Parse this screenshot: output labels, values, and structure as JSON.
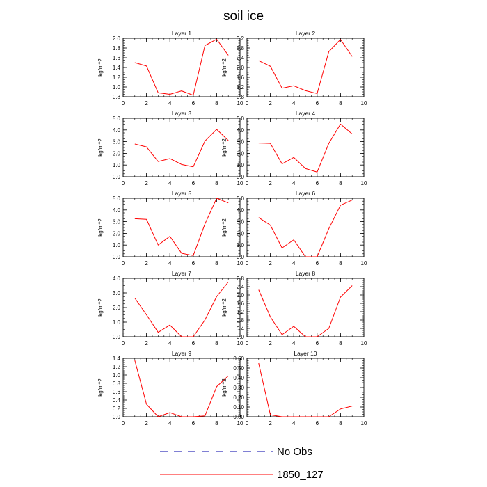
{
  "title": "soil ice",
  "legend": [
    {
      "label": "No Obs",
      "color": "#0000aa",
      "style": "dashed"
    },
    {
      "label": "1850_127",
      "color": "#ff0000",
      "style": "solid"
    }
  ],
  "chart_data": [
    {
      "type": "line",
      "title": "Layer 1",
      "ylabel": "kg/m^2",
      "xlim": [
        0,
        10
      ],
      "ylim": [
        0.8,
        2.0
      ],
      "x_ticks": [
        "0",
        "2",
        "4",
        "6",
        "8",
        "10"
      ],
      "y_ticks": [
        "0.8",
        "1.0",
        "1.2",
        "1.4",
        "1.6",
        "1.8",
        "2.0"
      ],
      "series": [
        {
          "name": "1850_127",
          "color": "#ff0000",
          "x": [
            1,
            2,
            3,
            4,
            5,
            6,
            7,
            8,
            9
          ],
          "values": [
            1.5,
            1.43,
            0.88,
            0.85,
            0.92,
            0.83,
            1.85,
            1.98,
            1.65
          ]
        }
      ]
    },
    {
      "type": "line",
      "title": "Layer 2",
      "ylabel": "kg/m^2",
      "xlim": [
        0,
        10
      ],
      "ylim": [
        0.8,
        3.2
      ],
      "x_ticks": [
        "0",
        "2",
        "4",
        "6",
        "8",
        "10"
      ],
      "y_ticks": [
        "0.8",
        "1.2",
        "1.6",
        "2.0",
        "2.4",
        "2.8",
        "3.2"
      ],
      "series": [
        {
          "name": "1850_127",
          "color": "#ff0000",
          "x": [
            1,
            2,
            3,
            4,
            5,
            6,
            7,
            8,
            9
          ],
          "values": [
            2.28,
            2.05,
            1.15,
            1.25,
            1.05,
            0.93,
            2.65,
            3.15,
            2.45
          ]
        }
      ]
    },
    {
      "type": "line",
      "title": "Layer 3",
      "ylabel": "kg/m^2",
      "xlim": [
        0,
        10
      ],
      "ylim": [
        0.0,
        5.0
      ],
      "x_ticks": [
        "0",
        "2",
        "4",
        "6",
        "8",
        "10"
      ],
      "y_ticks": [
        "0.0",
        "1.0",
        "2.0",
        "3.0",
        "4.0",
        "5.0"
      ],
      "series": [
        {
          "name": "1850_127",
          "color": "#ff0000",
          "x": [
            1,
            2,
            3,
            4,
            5,
            6,
            7,
            8,
            9
          ],
          "values": [
            2.8,
            2.55,
            1.3,
            1.55,
            1.05,
            0.85,
            3.05,
            4.05,
            3.1
          ]
        }
      ]
    },
    {
      "type": "line",
      "title": "Layer 4",
      "ylabel": "kg/m^2",
      "xlim": [
        0,
        10
      ],
      "ylim": [
        0.0,
        5.0
      ],
      "x_ticks": [
        "0",
        "2",
        "4",
        "6",
        "8",
        "10"
      ],
      "y_ticks": [
        "0.0",
        "1.0",
        "2.0",
        "3.0",
        "4.0",
        "5.0"
      ],
      "series": [
        {
          "name": "1850_127",
          "color": "#ff0000",
          "x": [
            1,
            2,
            3,
            4,
            5,
            6,
            7,
            8,
            9
          ],
          "values": [
            2.88,
            2.85,
            1.1,
            1.65,
            0.7,
            0.4,
            2.85,
            4.5,
            3.65
          ]
        }
      ]
    },
    {
      "type": "line",
      "title": "Layer 5",
      "ylabel": "kg/m^2",
      "xlim": [
        0,
        10
      ],
      "ylim": [
        0.0,
        5.0
      ],
      "x_ticks": [
        "0",
        "2",
        "4",
        "6",
        "8",
        "10"
      ],
      "y_ticks": [
        "0.0",
        "1.0",
        "2.0",
        "3.0",
        "4.0",
        "5.0"
      ],
      "series": [
        {
          "name": "1850_127",
          "color": "#ff0000",
          "x": [
            1,
            2,
            3,
            4,
            5,
            6,
            7,
            8,
            9
          ],
          "values": [
            3.25,
            3.2,
            1.0,
            1.75,
            0.3,
            0.1,
            2.8,
            5.0,
            4.6
          ]
        }
      ]
    },
    {
      "type": "line",
      "title": "Layer 6",
      "ylabel": "kg/m^2",
      "xlim": [
        0,
        10
      ],
      "ylim": [
        0.0,
        5.0
      ],
      "x_ticks": [
        "0",
        "2",
        "4",
        "6",
        "8",
        "10"
      ],
      "y_ticks": [
        "0.0",
        "1.0",
        "2.0",
        "3.0",
        "4.0",
        "5.0"
      ],
      "series": [
        {
          "name": "1850_127",
          "color": "#ff0000",
          "x": [
            1,
            2,
            3,
            4,
            5,
            6,
            7,
            8,
            9
          ],
          "values": [
            3.35,
            2.7,
            0.75,
            1.45,
            0.0,
            0.0,
            2.4,
            4.4,
            4.85
          ]
        }
      ]
    },
    {
      "type": "line",
      "title": "Layer 7",
      "ylabel": "kg/m^2",
      "xlim": [
        0,
        10
      ],
      "ylim": [
        0.0,
        4.0
      ],
      "x_ticks": [
        "0",
        "2",
        "4",
        "6",
        "8",
        "10"
      ],
      "y_ticks": [
        "0.0",
        "1.0",
        "2.0",
        "3.0",
        "4.0"
      ],
      "series": [
        {
          "name": "1850_127",
          "color": "#ff0000",
          "x": [
            1,
            2,
            3,
            4,
            5,
            6,
            7,
            8,
            9
          ],
          "values": [
            2.65,
            1.5,
            0.3,
            0.8,
            0.0,
            0.0,
            1.15,
            2.75,
            3.75
          ]
        }
      ]
    },
    {
      "type": "line",
      "title": "Layer 8",
      "ylabel": "kg/m^2",
      "xlim": [
        0,
        10
      ],
      "ylim": [
        0.0,
        2.8
      ],
      "x_ticks": [
        "0",
        "2",
        "4",
        "6",
        "8",
        "10"
      ],
      "y_ticks": [
        "0.0",
        "0.4",
        "0.8",
        "1.2",
        "1.6",
        "2.0",
        "2.4",
        "2.8"
      ],
      "series": [
        {
          "name": "1850_127",
          "color": "#ff0000",
          "x": [
            1,
            2,
            3,
            4,
            5,
            6,
            7,
            8,
            9
          ],
          "values": [
            2.25,
            0.95,
            0.1,
            0.5,
            0.0,
            0.0,
            0.4,
            1.9,
            2.45
          ]
        }
      ]
    },
    {
      "type": "line",
      "title": "Layer 9",
      "ylabel": "kg/m^2",
      "xlim": [
        0,
        10
      ],
      "ylim": [
        0.0,
        1.4
      ],
      "x_ticks": [
        "0",
        "2",
        "4",
        "6",
        "8",
        "10"
      ],
      "y_ticks": [
        "0.0",
        "0.2",
        "0.4",
        "0.6",
        "0.8",
        "1.0",
        "1.2",
        "1.4"
      ],
      "series": [
        {
          "name": "1850_127",
          "color": "#ff0000",
          "x": [
            1,
            2,
            3,
            4,
            5,
            6,
            7,
            8,
            9
          ],
          "values": [
            1.35,
            0.3,
            0.0,
            0.1,
            0.0,
            0.0,
            0.02,
            0.72,
            0.98
          ]
        }
      ]
    },
    {
      "type": "line",
      "title": "Layer 10",
      "ylabel": "kg/m^2",
      "xlim": [
        0,
        10
      ],
      "ylim": [
        0.0,
        0.6
      ],
      "x_ticks": [
        "0",
        "2",
        "4",
        "6",
        "8",
        "10"
      ],
      "y_ticks": [
        "0.00",
        "0.10",
        "0.20",
        "0.30",
        "0.40",
        "0.50",
        "0.60"
      ],
      "series": [
        {
          "name": "1850_127",
          "color": "#ff0000",
          "x": [
            1,
            2,
            3,
            4,
            5,
            6,
            7,
            8,
            9
          ],
          "values": [
            0.55,
            0.02,
            0.0,
            0.0,
            0.0,
            0.0,
            0.0,
            0.08,
            0.11
          ]
        }
      ]
    }
  ]
}
